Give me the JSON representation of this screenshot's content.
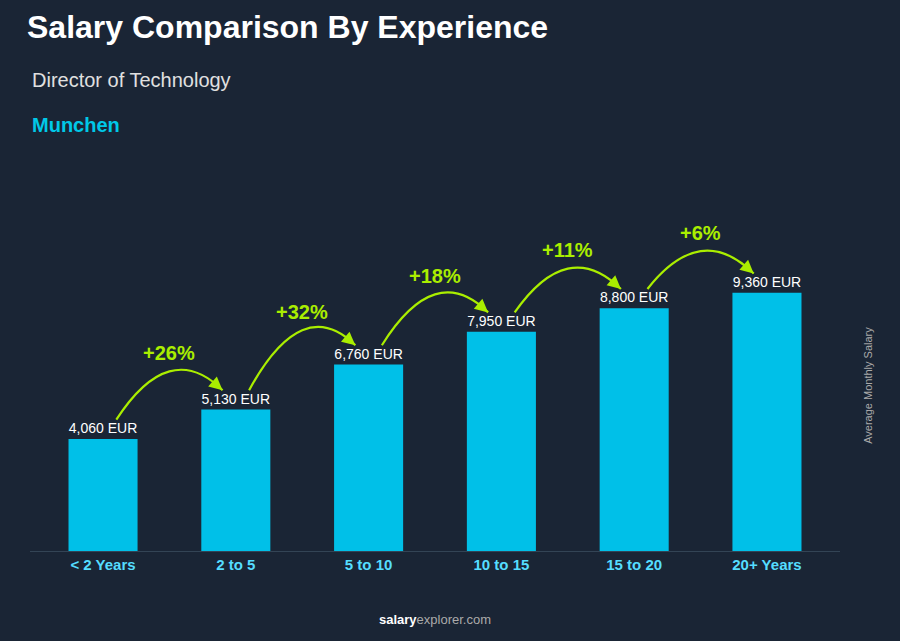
{
  "chart_data": {
    "type": "bar",
    "title": "Salary Comparison By Experience",
    "subtitle": "Director of Technology",
    "city": "Munchen",
    "ylabel": "Average Monthly Salary",
    "footer": [
      "salary",
      "explorer.com"
    ],
    "categories": [
      "< 2 Years",
      "2 to 5",
      "5 to 10",
      "10 to 15",
      "15 to 20",
      "20+ Years"
    ],
    "values": [
      4060,
      5130,
      6760,
      7950,
      8800,
      9360
    ],
    "value_labels": [
      "4,060 EUR",
      "5,130 EUR",
      "6,760 EUR",
      "7,950 EUR",
      "8,800 EUR",
      "9,360 EUR"
    ],
    "data_labels": true,
    "annotations": [
      "+26%",
      "+32%",
      "+18%",
      "+11%",
      "+6%"
    ],
    "color": "#00c0e8",
    "ylim": [
      0,
      12000
    ],
    "tick_labels": "x",
    "grid": false
  }
}
